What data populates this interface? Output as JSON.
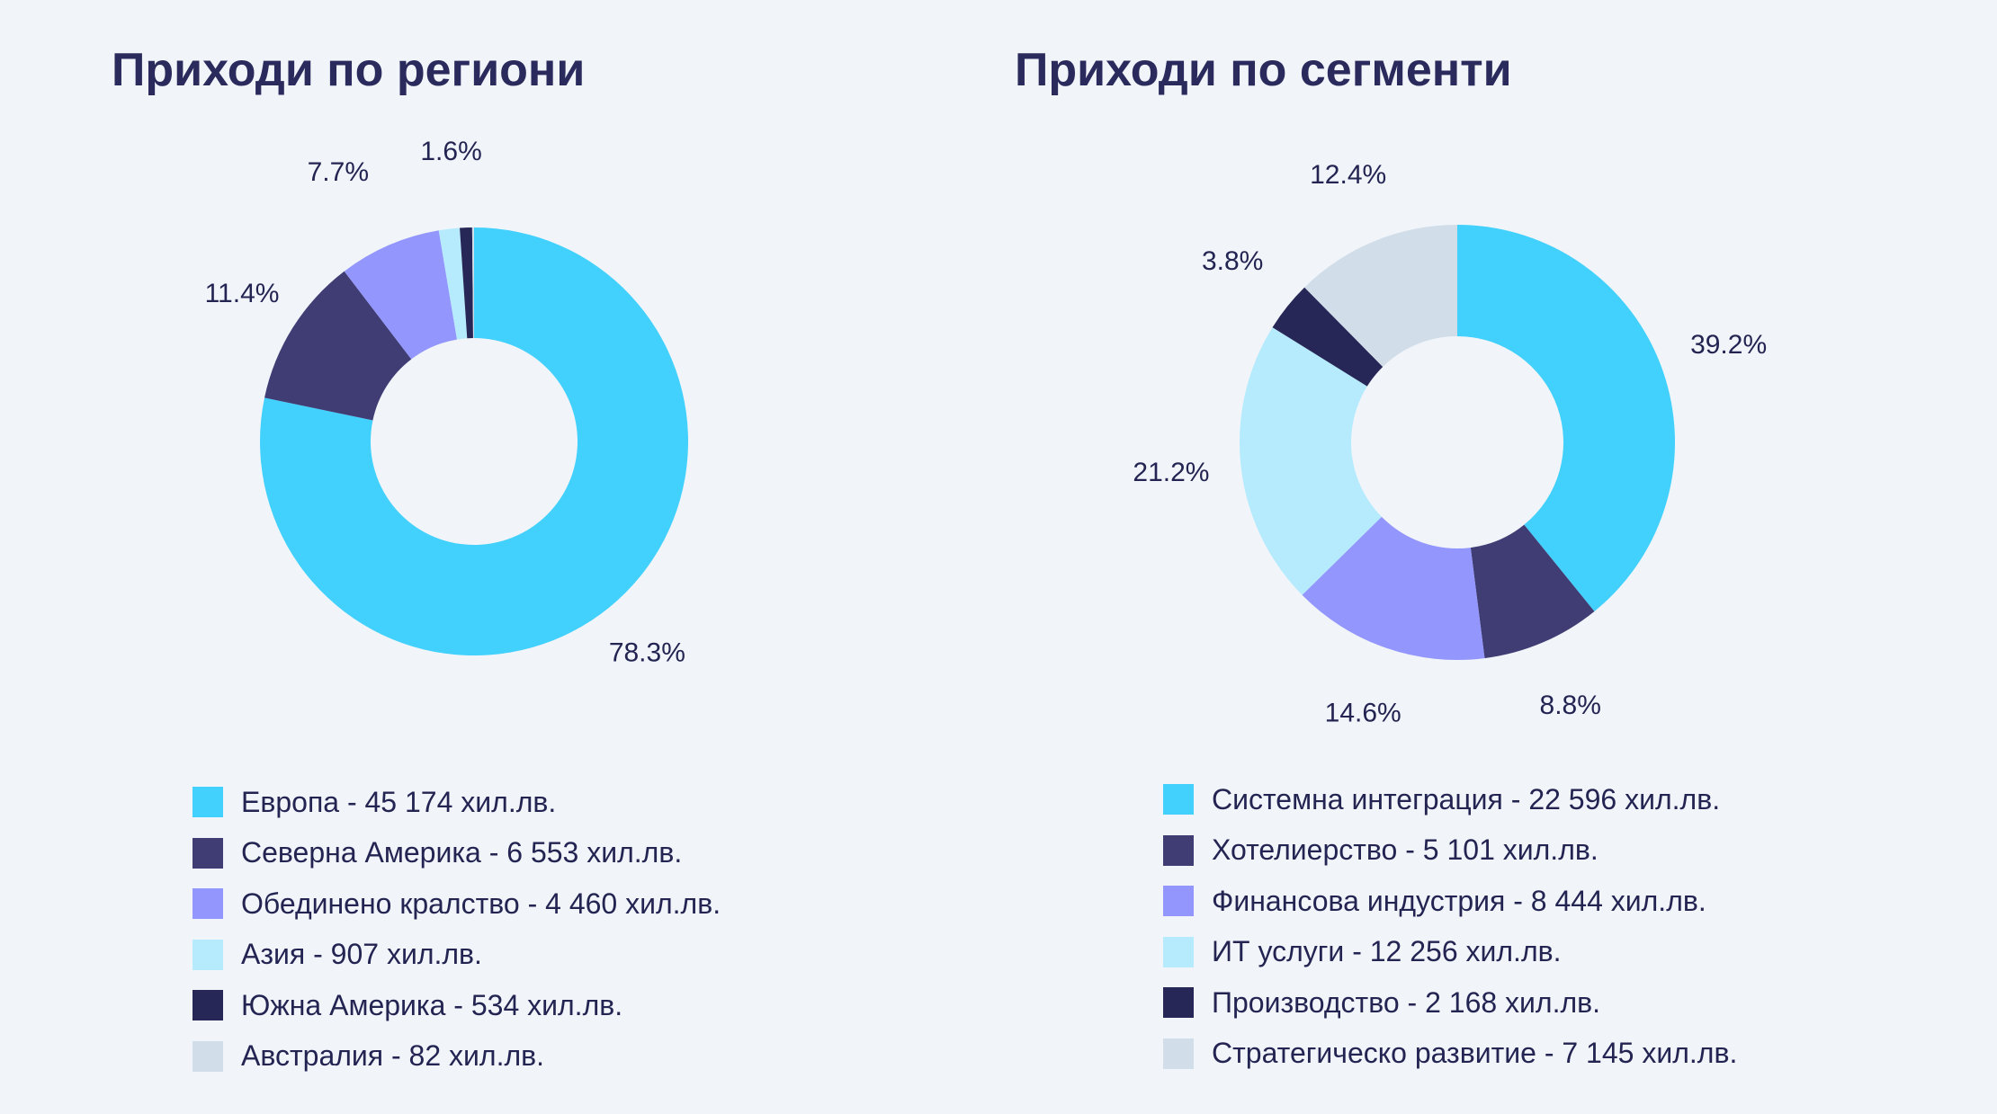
{
  "chart_data": [
    {
      "type": "pie",
      "title": "Приходи по региони",
      "slices": [
        {
          "label": "Европа - 45 174 хил.лв.",
          "value": 45174,
          "percent_label": "78.3%",
          "color": "#42d0fc"
        },
        {
          "label": "Северна Америка - 6 553 хил.лв.",
          "value": 6553,
          "percent_label": "11.4%",
          "color": "#403d75"
        },
        {
          "label": "Обединено кралство - 4 460 хил.лв.",
          "value": 4460,
          "percent_label": "7.7%",
          "color": "#9396fd"
        },
        {
          "label": "Азия - 907 хил.лв.",
          "value": 907,
          "percent_label": "1.6%",
          "color": "#b5ebfd"
        },
        {
          "label": "Южна Америка - 534 хил.лв.",
          "value": 534,
          "percent_label": "",
          "color": "#272757"
        },
        {
          "label": "Австралия - 82 хил.лв.",
          "value": 82,
          "percent_label": "",
          "color": "#d1dde9"
        }
      ]
    },
    {
      "type": "pie",
      "title": "Приходи по сегменти",
      "slices": [
        {
          "label": "Системна интеграция - 22 596 хил.лв.",
          "value": 22596,
          "percent_label": "39.2%",
          "color": "#42d0fc"
        },
        {
          "label": "Хотелиерство - 5 101 хил.лв.",
          "value": 5101,
          "percent_label": "8.8%",
          "color": "#403d75"
        },
        {
          "label": "Финансова индустрия - 8 444 хил.лв.",
          "value": 8444,
          "percent_label": "14.6%",
          "color": "#9396fd"
        },
        {
          "label": "ИТ услуги - 12 256 хил.лв.",
          "value": 12256,
          "percent_label": "21.2%",
          "color": "#b5ebfd"
        },
        {
          "label": "Производство - 2 168 хил.лв.",
          "value": 2168,
          "percent_label": "3.8%",
          "color": "#272757"
        },
        {
          "label": "Стратегическо развитие - 7 145 хил.лв.",
          "value": 7145,
          "percent_label": "12.4%",
          "color": "#d1dde9"
        }
      ]
    }
  ]
}
